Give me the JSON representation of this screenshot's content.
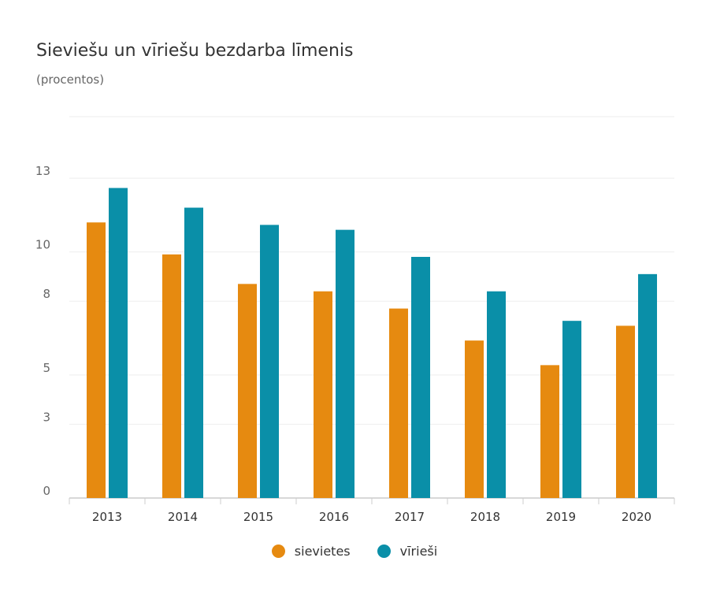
{
  "title": "Sieviešu un vīriešu bezdarba līmenis",
  "subtitle": "(procentos)",
  "colors": {
    "sievietes": "#E68A10",
    "virieSi": "#0A8FA8",
    "grid": "#eeeeee",
    "axis": "#cccccc"
  },
  "legend": {
    "items": [
      {
        "label": "sievietes"
      },
      {
        "label": "vīrieši"
      }
    ]
  },
  "chart_data": {
    "type": "bar",
    "title": "Sieviešu un vīriešu bezdarba līmenis",
    "subtitle": "(procentos)",
    "categories": [
      "2013",
      "2014",
      "2015",
      "2016",
      "2017",
      "2018",
      "2019",
      "2020"
    ],
    "series": [
      {
        "name": "sievietes",
        "values": [
          11.2,
          9.9,
          8.7,
          8.4,
          7.7,
          6.4,
          5.4,
          7.0
        ]
      },
      {
        "name": "vīrieši",
        "values": [
          12.6,
          11.8,
          11.1,
          10.9,
          9.8,
          8.4,
          7.2,
          9.1
        ]
      }
    ],
    "yticks": [
      0,
      3,
      5,
      8,
      10,
      13
    ],
    "ylim": [
      0,
      15.5
    ],
    "legend": "bottom-center",
    "grid": true
  }
}
